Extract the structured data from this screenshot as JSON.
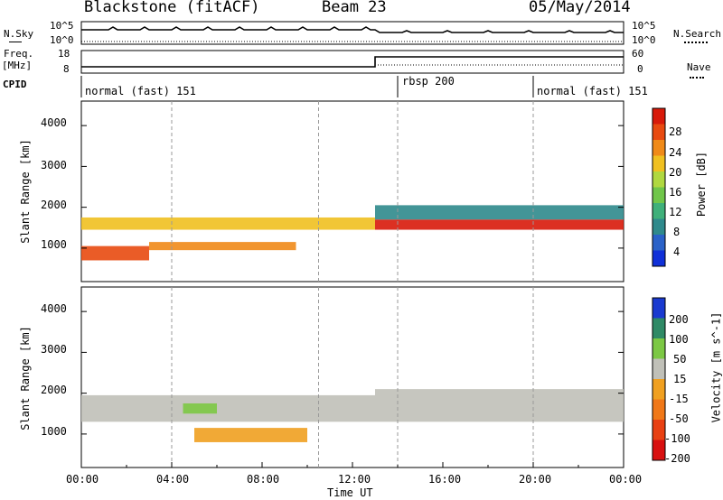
{
  "header": {
    "radar": "Blackstone (fitACF)",
    "beam": "Beam 23",
    "date": "05/May/2014"
  },
  "summary_panels": {
    "nsky_label": "N.Sky",
    "nsky_ticks": [
      "10^5",
      "10^0"
    ],
    "freq_label_1": "Freq.",
    "freq_label_2": "[MHz]",
    "freq_ticks": [
      "18",
      "8"
    ],
    "nsearch_label": "N.Search",
    "nsearch_ticks": [
      "10^5",
      "10^0"
    ],
    "nave_label": "Nave",
    "nave_ticks": [
      "60",
      "0"
    ],
    "cpid_label": "CPID",
    "cpid_segments": [
      {
        "label": "normal (fast) 151",
        "start_hour": 0,
        "end_hour": 13
      },
      {
        "label": "rbsp 200",
        "start_hour": 14,
        "end_hour": 20
      },
      {
        "label": "normal (fast) 151",
        "start_hour": 20,
        "end_hour": 24
      }
    ]
  },
  "chart_data": [
    {
      "type": "heatmap",
      "quantity": "Power",
      "ylabel": "Slant Range [km]",
      "ylim": [
        180,
        4600
      ],
      "yticks": [
        "1000",
        "2000",
        "3000",
        "4000"
      ],
      "colorbar_label": "Power [dB]",
      "colorbar_ticks": [
        "4",
        "8",
        "12",
        "16",
        "20",
        "24",
        "28"
      ],
      "colorscale": [
        "#1030d8",
        "#2a62c8",
        "#2f8a8c",
        "#3fb07a",
        "#70c64a",
        "#b0d840",
        "#f0c020",
        "#f08a18",
        "#e84a10",
        "#d81a0a"
      ],
      "bands": [
        {
          "t0": 0,
          "t1": 13,
          "r0": 1450,
          "r1": 1750,
          "level": 6
        },
        {
          "t0": 0,
          "t1": 3,
          "r0": 700,
          "r1": 1050,
          "level": 8
        },
        {
          "t0": 3,
          "t1": 9.5,
          "r0": 950,
          "r1": 1150,
          "level": 7
        },
        {
          "t0": 13,
          "t1": 24,
          "r0": 1450,
          "r1": 1700,
          "level": 9
        },
        {
          "t0": 13,
          "t1": 24,
          "r0": 1700,
          "r1": 2050,
          "level": 2
        }
      ]
    },
    {
      "type": "heatmap",
      "quantity": "Velocity",
      "ylabel": "Slant Range [km]",
      "ylim": [
        180,
        4600
      ],
      "yticks": [
        "1000",
        "2000",
        "3000",
        "4000"
      ],
      "colorbar_label": "Velocity [m s^-1]",
      "colorbar_ticks": [
        "200",
        "100",
        "50",
        "15",
        "-15",
        "-50",
        "-100",
        "-200"
      ],
      "colorscale": [
        "#1a3ad0",
        "#2f8a66",
        "#7cc844",
        "#c0c0b8",
        "#f0a020",
        "#f07818",
        "#e84012",
        "#d81010"
      ],
      "bands": [
        {
          "t0": 0,
          "t1": 13,
          "r0": 1300,
          "r1": 1950,
          "level": 3
        },
        {
          "t0": 13,
          "t1": 24,
          "r0": 1300,
          "r1": 2100,
          "level": 3
        },
        {
          "t0": 5,
          "t1": 10,
          "r0": 800,
          "r1": 1150,
          "level": 4
        },
        {
          "t0": 4.5,
          "t1": 6,
          "r0": 1500,
          "r1": 1750,
          "level": 2
        }
      ]
    }
  ],
  "x_axis": {
    "ticks": [
      "00:00",
      "04:00",
      "08:00",
      "12:00",
      "16:00",
      "20:00",
      "00:00"
    ],
    "label": "Time UT"
  }
}
